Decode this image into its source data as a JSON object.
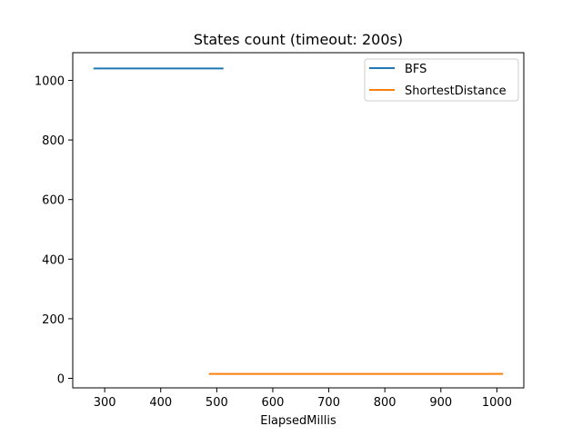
{
  "chart_data": {
    "type": "line",
    "title": "States count (timeout: 200s)",
    "xlabel": "ElapsedMillis",
    "ylabel": "",
    "xlim": [
      243,
      1048
    ],
    "ylim": [
      -32,
      1093
    ],
    "xticks": [
      300,
      400,
      500,
      600,
      700,
      800,
      900,
      1000
    ],
    "yticks": [
      0,
      200,
      400,
      600,
      800,
      1000
    ],
    "grid": false,
    "legend_position": "top-right",
    "series": [
      {
        "name": "BFS",
        "color": "#1f77b4",
        "x": [
          280,
          512
        ],
        "y": [
          1040,
          1040
        ]
      },
      {
        "name": "ShortestDistance",
        "color": "#ff7f0e",
        "x": [
          486,
          1011
        ],
        "y": [
          15,
          15
        ]
      }
    ]
  }
}
